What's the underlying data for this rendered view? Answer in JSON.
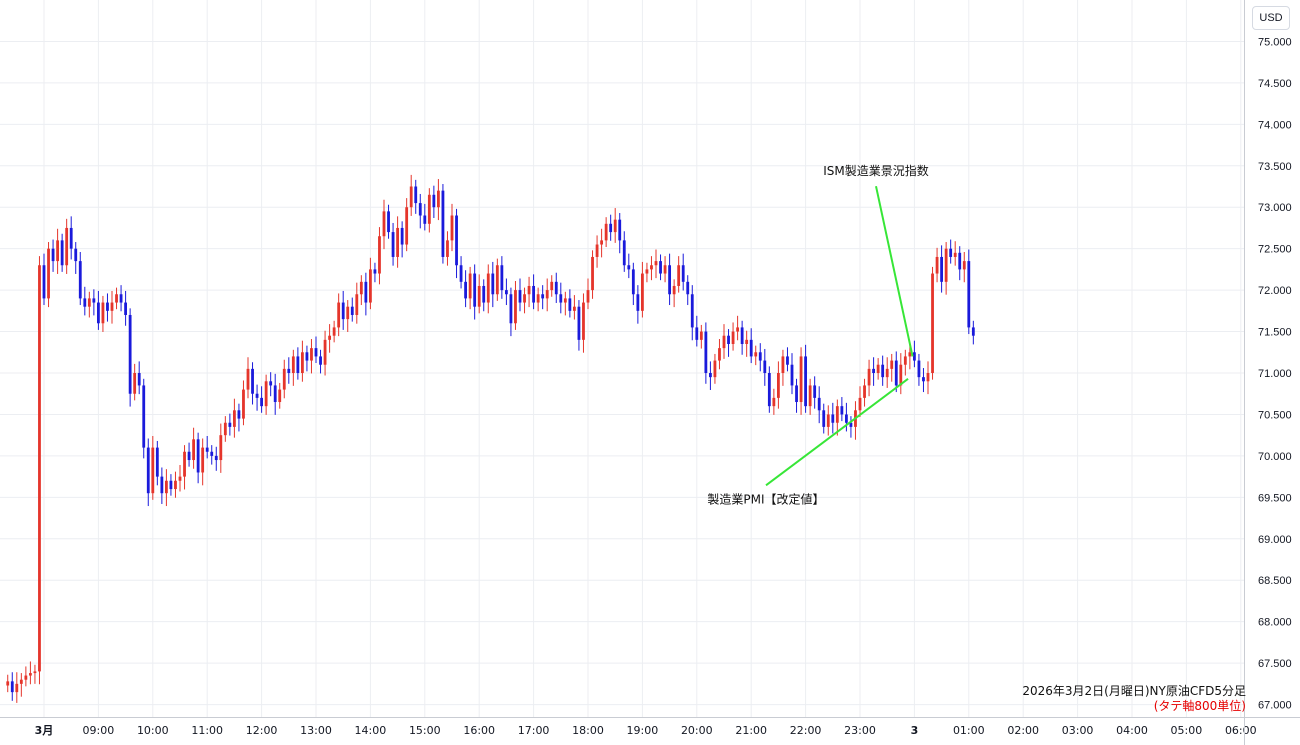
{
  "currency": "USD",
  "caption": {
    "title": "2026年3月2日(月曜日)NY原油CFD5分足",
    "note": "(タテ軸800単位)"
  },
  "annotations": [
    {
      "text": "ISM製造業景況指数",
      "anchor_x": "23:58",
      "anchor_y": 71.2,
      "label_y": 73.35
    },
    {
      "text": "製造業PMI【改定値】",
      "anchor_x": "23:53",
      "anchor_y": 70.93,
      "label_y": 69.5
    }
  ],
  "colors": {
    "up": "#e5352b",
    "down": "#1a1adb",
    "grid": "#eceef2",
    "annotation_line": "#37e637"
  },
  "chart_data": {
    "type": "candlestick",
    "y_ticks": [
      "67.000",
      "67.500",
      "68.000",
      "68.500",
      "69.000",
      "69.500",
      "70.000",
      "70.500",
      "71.000",
      "71.500",
      "72.000",
      "72.500",
      "73.000",
      "73.500",
      "74.000",
      "74.500",
      "75.000"
    ],
    "ylim": [
      66.85,
      75.5
    ],
    "x_ticks": [
      "3月",
      "09:00",
      "10:00",
      "11:00",
      "12:00",
      "13:00",
      "14:00",
      "15:00",
      "16:00",
      "17:00",
      "18:00",
      "19:00",
      "20:00",
      "21:00",
      "22:00",
      "23:00",
      "3",
      "01:00",
      "02:00",
      "03:00",
      "04:00",
      "05:00",
      "06:00"
    ],
    "interval_minutes": 5,
    "start_time": "07:20",
    "close": [
      67.28,
      67.15,
      67.25,
      67.3,
      67.35,
      67.38,
      67.4,
      72.3,
      71.9,
      72.5,
      72.35,
      72.6,
      72.3,
      72.75,
      72.5,
      72.35,
      71.9,
      71.8,
      71.9,
      71.85,
      71.6,
      71.85,
      71.75,
      71.85,
      71.95,
      71.85,
      71.7,
      70.75,
      71.0,
      70.85,
      70.1,
      69.55,
      70.1,
      69.75,
      69.55,
      69.7,
      69.6,
      69.7,
      69.75,
      70.05,
      69.95,
      70.2,
      69.8,
      70.1,
      70.05,
      70.0,
      69.95,
      70.25,
      70.4,
      70.35,
      70.55,
      70.45,
      70.8,
      71.05,
      70.75,
      70.7,
      70.6,
      70.9,
      70.85,
      70.65,
      70.8,
      71.05,
      71.0,
      71.2,
      71.0,
      71.25,
      71.15,
      71.3,
      71.2,
      71.1,
      71.4,
      71.45,
      71.55,
      71.85,
      71.65,
      71.8,
      71.7,
      71.95,
      72.1,
      71.85,
      72.25,
      72.2,
      72.65,
      72.95,
      72.7,
      72.4,
      72.75,
      72.55,
      73.0,
      73.25,
      73.05,
      72.9,
      72.8,
      73.15,
      73.0,
      73.2,
      72.4,
      72.6,
      72.9,
      72.3,
      72.1,
      71.9,
      72.2,
      71.8,
      72.05,
      71.85,
      72.2,
      71.95,
      72.3,
      72.0,
      71.95,
      71.6,
      72.0,
      71.85,
      71.95,
      72.05,
      71.85,
      71.95,
      71.9,
      72.0,
      72.1,
      71.95,
      71.85,
      71.9,
      71.75,
      71.8,
      71.4,
      71.85,
      72.0,
      72.4,
      72.55,
      72.6,
      72.8,
      72.7,
      72.85,
      72.6,
      72.3,
      72.25,
      71.95,
      71.75,
      72.2,
      72.25,
      72.3,
      72.35,
      72.2,
      72.3,
      71.95,
      72.05,
      72.3,
      72.1,
      71.95,
      71.55,
      71.4,
      71.5,
      71.0,
      70.95,
      71.15,
      71.3,
      71.45,
      71.35,
      71.5,
      71.55,
      71.35,
      71.4,
      71.2,
      71.25,
      71.15,
      71.0,
      70.6,
      70.7,
      71.0,
      71.2,
      71.1,
      70.85,
      70.65,
      71.2,
      70.6,
      70.85,
      70.7,
      70.55,
      70.35,
      70.5,
      70.4,
      70.6,
      70.5,
      70.4,
      70.35,
      70.55,
      70.7,
      70.85,
      71.05,
      71.0,
      71.1,
      70.95,
      71.05,
      71.15,
      70.85,
      71.1,
      71.2,
      71.25,
      71.15,
      70.95,
      70.9,
      71.0,
      72.2,
      72.4,
      72.1,
      72.5,
      72.4,
      72.45,
      72.25,
      72.35,
      71.55,
      71.45
    ]
  }
}
